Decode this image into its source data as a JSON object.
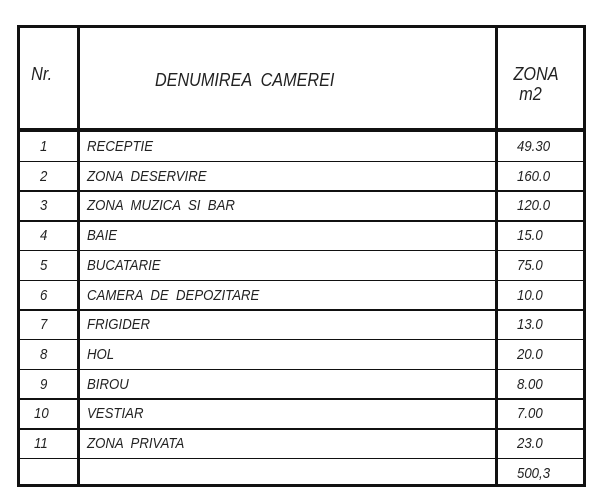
{
  "header": {
    "nr": "Nr.",
    "name": "DENUMIREA  CAMEREI",
    "area_line1": "ZONA",
    "area_line2": "m2"
  },
  "rows": [
    {
      "nr": "1",
      "name": "RECEPTIE",
      "area": "49.30"
    },
    {
      "nr": "2",
      "name": "ZONA  DESERVIRE",
      "area": "160.0"
    },
    {
      "nr": "3",
      "name": "ZONA  MUZICA  SI  BAR",
      "area": "120.0"
    },
    {
      "nr": "4",
      "name": "BAIE",
      "area": "15.0"
    },
    {
      "nr": "5",
      "name": "BUCATARIE",
      "area": "75.0"
    },
    {
      "nr": "6",
      "name": "CAMERA  DE  DEPOZITARE",
      "area": "10.0"
    },
    {
      "nr": "7",
      "name": "FRIGIDER",
      "area": "13.0"
    },
    {
      "nr": "8",
      "name": "HOL",
      "area": "20.0"
    },
    {
      "nr": "9",
      "name": "BIROU",
      "area": "8.00"
    },
    {
      "nr": "10",
      "name": "VESTIAR",
      "area": "7.00"
    },
    {
      "nr": "11",
      "name": "ZONA  PRIVATA",
      "area": "23.0"
    }
  ],
  "total": {
    "area": "500,3"
  }
}
